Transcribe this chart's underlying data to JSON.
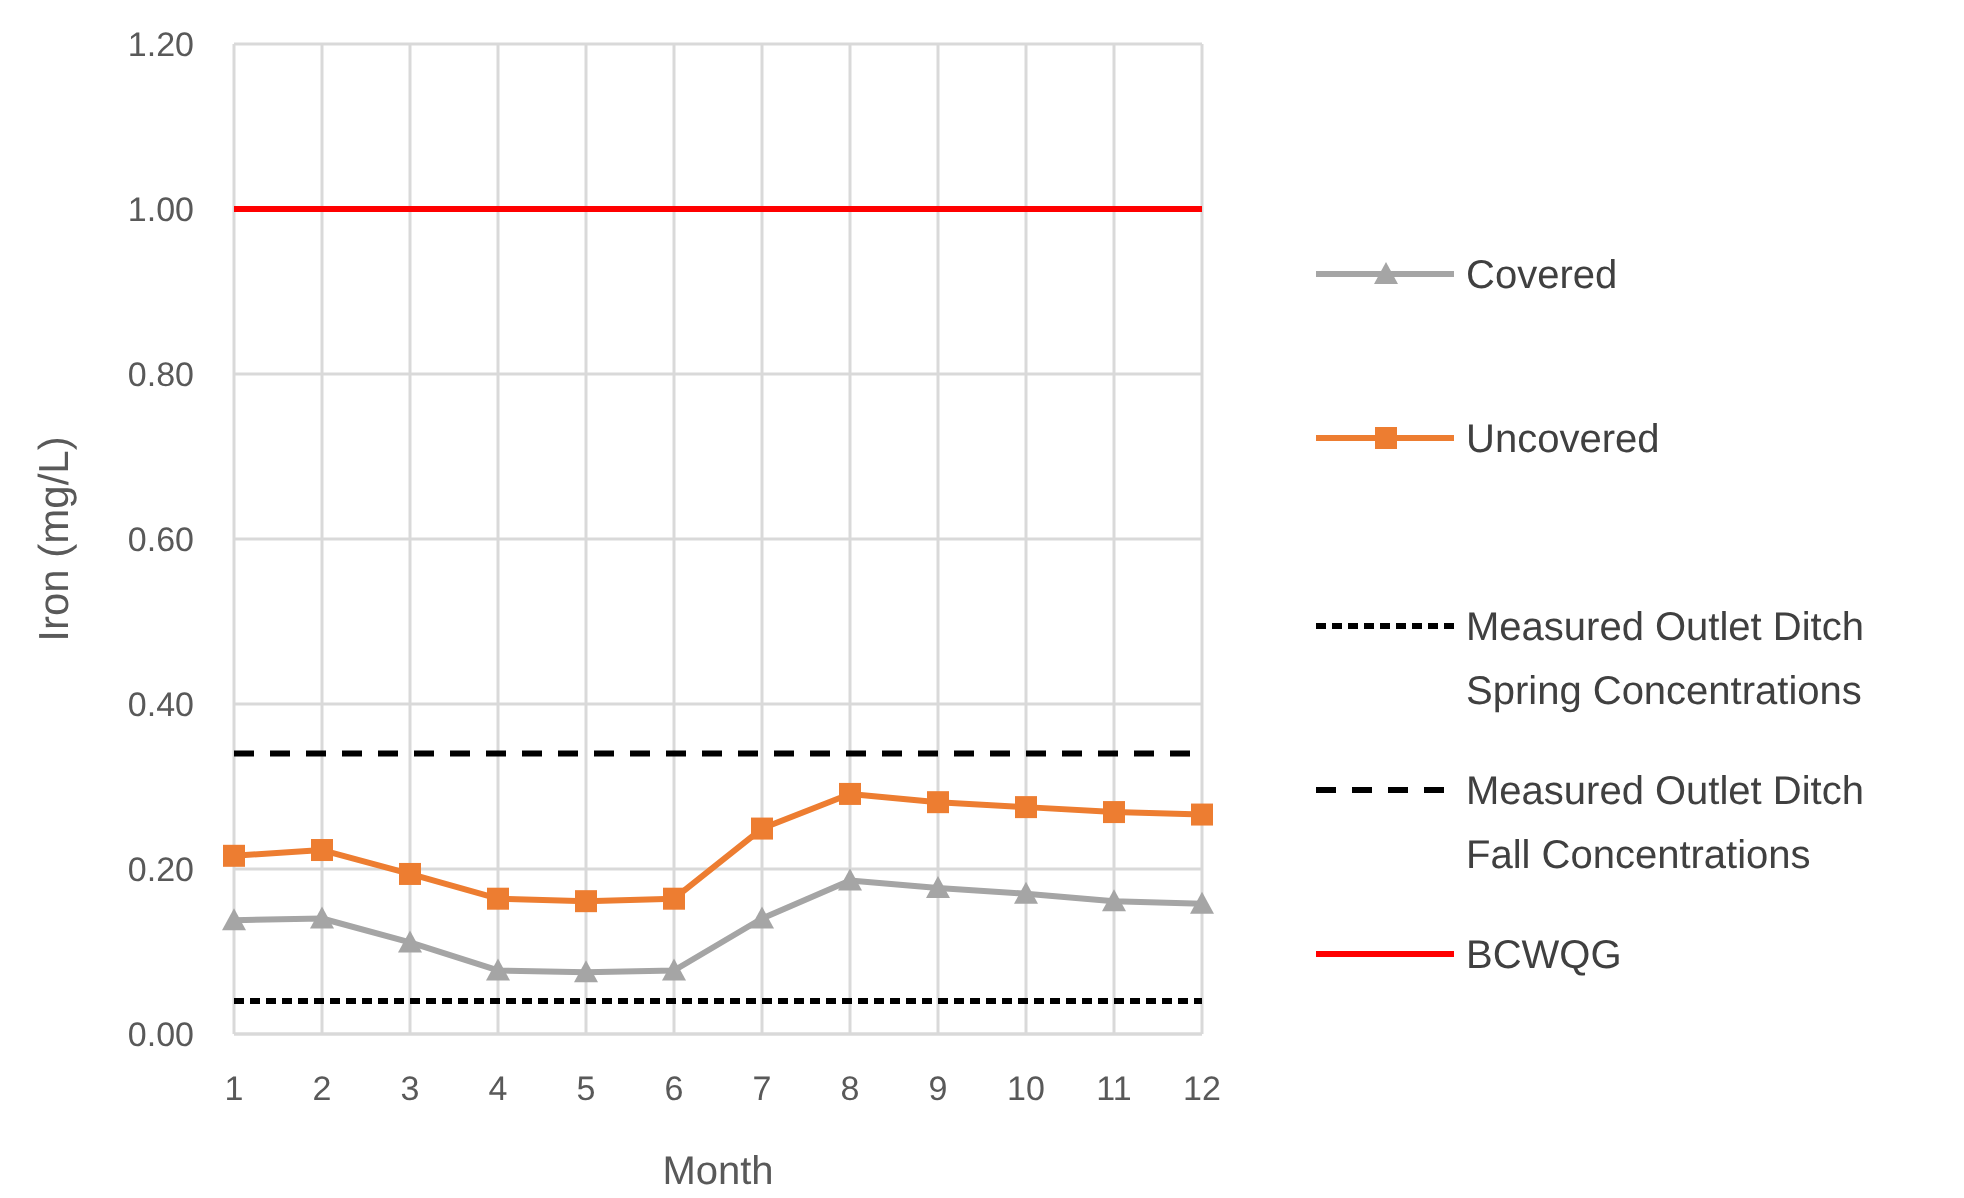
{
  "chart_data": {
    "type": "line",
    "xlabel": "Month",
    "ylabel": "Iron (mg/L)",
    "x": [
      1,
      2,
      3,
      4,
      5,
      6,
      7,
      8,
      9,
      10,
      11,
      12
    ],
    "xlim": [
      1,
      12
    ],
    "xticks": [
      1,
      2,
      3,
      4,
      5,
      6,
      7,
      8,
      9,
      10,
      11,
      12
    ],
    "ylim": [
      0,
      1.2
    ],
    "yticks": [
      {
        "value": 0,
        "label": "0.00"
      },
      {
        "value": 0.2,
        "label": "0.20"
      },
      {
        "value": 0.4,
        "label": "0.40"
      },
      {
        "value": 0.6,
        "label": "0.60"
      },
      {
        "value": 0.8,
        "label": "0.80"
      },
      {
        "value": 1,
        "label": "1.00"
      },
      {
        "value": 1.2,
        "label": "1.20"
      }
    ],
    "grid": true,
    "legend": "right",
    "series": [
      {
        "name": "Covered",
        "color": "#a5a5a5",
        "marker": "triangle",
        "line_style": "solid",
        "values": [
          0.138,
          0.14,
          0.111,
          0.077,
          0.075,
          0.077,
          0.14,
          0.186,
          0.177,
          0.17,
          0.161,
          0.158
        ]
      },
      {
        "name": "Uncovered",
        "color": "#ed7d31",
        "marker": "square",
        "line_style": "solid",
        "values": [
          0.216,
          0.223,
          0.194,
          0.164,
          0.161,
          0.164,
          0.249,
          0.291,
          0.281,
          0.275,
          0.269,
          0.266
        ]
      },
      {
        "name": "Measured Outlet Ditch Spring Concentrations",
        "color": "#000000",
        "marker": "none",
        "line_style": "dotted",
        "values": [
          0.04,
          0.04,
          0.04,
          0.04,
          0.04,
          0.04,
          0.04,
          0.04,
          0.04,
          0.04,
          0.04,
          0.04
        ]
      },
      {
        "name": "Measured Outlet Ditch Fall Concentrations",
        "color": "#000000",
        "marker": "none",
        "line_style": "dashed",
        "values": [
          0.34,
          0.34,
          0.34,
          0.34,
          0.34,
          0.34,
          0.34,
          0.34,
          0.34,
          0.34,
          0.34,
          0.34
        ]
      },
      {
        "name": "BCWQG",
        "color": "#ff0000",
        "marker": "none",
        "line_style": "solid",
        "values": [
          1,
          1,
          1,
          1,
          1,
          1,
          1,
          1,
          1,
          1,
          1,
          1
        ]
      }
    ]
  }
}
